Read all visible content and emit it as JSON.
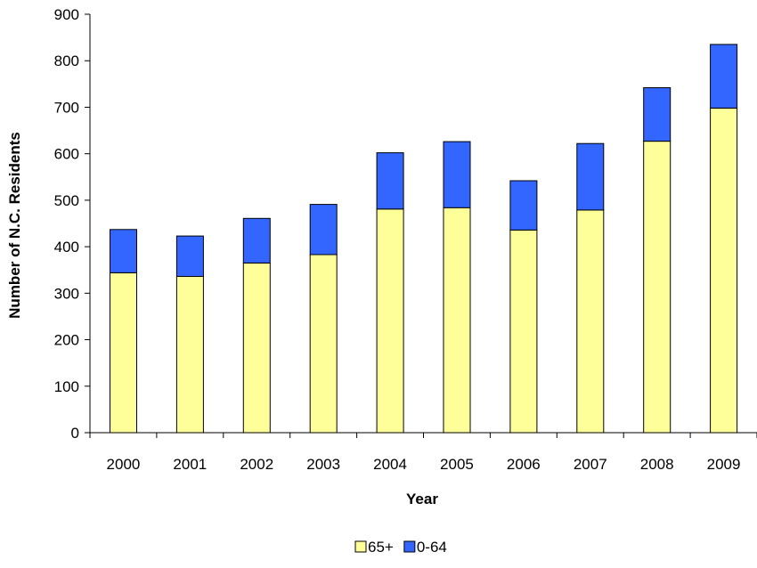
{
  "chart_data": {
    "type": "bar",
    "stacked": true,
    "categories": [
      "2000",
      "2001",
      "2002",
      "2003",
      "2004",
      "2005",
      "2006",
      "2007",
      "2008",
      "2009"
    ],
    "series": [
      {
        "name": "65+",
        "color": "#FFFF99",
        "values": [
          344,
          336,
          365,
          383,
          481,
          484,
          436,
          479,
          627,
          698
        ]
      },
      {
        "name": "0-64",
        "color": "#3366FF",
        "values": [
          93,
          87,
          96,
          108,
          121,
          142,
          106,
          143,
          115,
          137
        ]
      }
    ],
    "title": "",
    "xlabel": "Year",
    "ylabel": "Number of N.C. Residents",
    "ylim": [
      0,
      900
    ],
    "yticks": [
      0,
      100,
      200,
      300,
      400,
      500,
      600,
      700,
      800,
      900
    ],
    "grid": false,
    "legend_position": "bottom-center"
  }
}
